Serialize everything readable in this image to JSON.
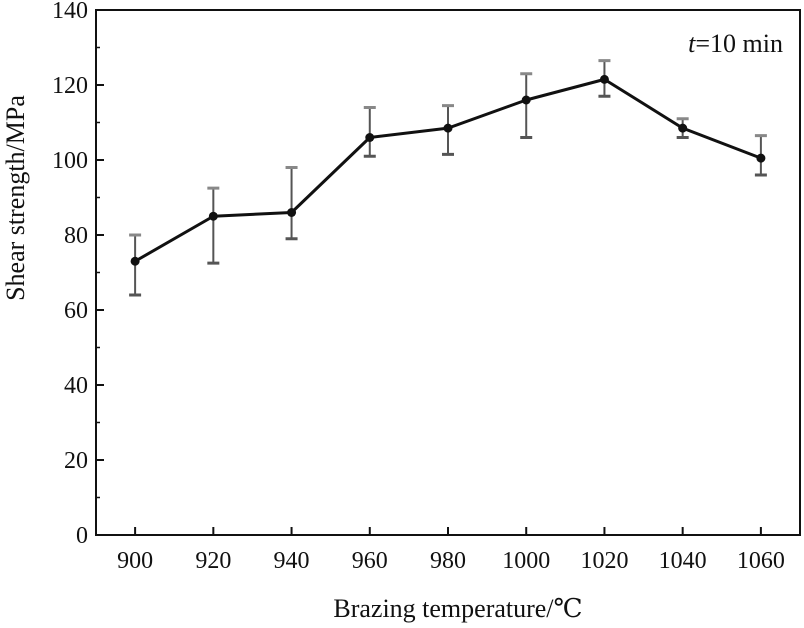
{
  "chart_data": {
    "type": "line",
    "xlabel": "Brazing temperature/℃",
    "ylabel": "Shear strength/MPa",
    "annotation": {
      "italic": "t",
      "rest": "=10 min"
    },
    "xlim": [
      890,
      1070
    ],
    "ylim": [
      0,
      140
    ],
    "x_ticks": [
      900,
      920,
      940,
      960,
      980,
      1000,
      1020,
      1040,
      1060
    ],
    "y_ticks": [
      0,
      20,
      40,
      60,
      80,
      100,
      120,
      140
    ],
    "grid": false,
    "series": [
      {
        "x": [
          900,
          920,
          940,
          960,
          980,
          1000,
          1020,
          1040,
          1060
        ],
        "y": [
          73,
          85,
          86,
          106,
          108.5,
          116,
          121.5,
          108.5,
          100.5
        ],
        "err_low": [
          64,
          72.5,
          79,
          101,
          101.5,
          106,
          117,
          106,
          96
        ],
        "err_high": [
          80,
          92.5,
          98,
          114,
          114.5,
          123,
          126.5,
          111,
          106.5
        ]
      }
    ],
    "colors": {
      "line": "#111111",
      "errorbar": "#888888",
      "axis": "#111111"
    }
  }
}
